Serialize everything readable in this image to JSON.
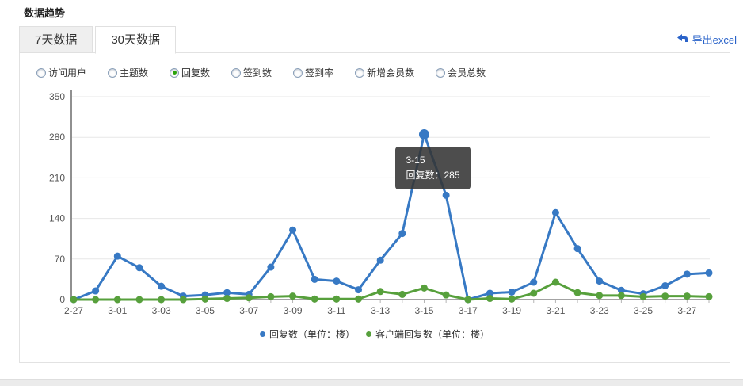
{
  "header": {
    "title": "数据趋势"
  },
  "tabs": [
    {
      "label": "7天数据",
      "active": false
    },
    {
      "label": "30天数据",
      "active": true
    }
  ],
  "export": {
    "label": "导出excel",
    "icon": "export-arrow-icon",
    "color": "#2a63c9"
  },
  "metrics": {
    "options": [
      {
        "label": "访问用户",
        "selected": false
      },
      {
        "label": "主题数",
        "selected": false
      },
      {
        "label": "回复数",
        "selected": true
      },
      {
        "label": "签到数",
        "selected": false
      },
      {
        "label": "签到率",
        "selected": false
      },
      {
        "label": "新增会员数",
        "selected": false
      },
      {
        "label": "会员总数",
        "selected": false
      }
    ]
  },
  "chart_data": {
    "type": "line",
    "x": [
      "2-27",
      "2-28",
      "3-01",
      "3-02",
      "3-03",
      "3-04",
      "3-05",
      "3-06",
      "3-07",
      "3-08",
      "3-09",
      "3-10",
      "3-11",
      "3-12",
      "3-13",
      "3-14",
      "3-15",
      "3-16",
      "3-17",
      "3-18",
      "3-19",
      "3-20",
      "3-21",
      "3-22",
      "3-23",
      "3-24",
      "3-25",
      "3-26",
      "3-27",
      "3-28"
    ],
    "x_label_every": 2,
    "series": [
      {
        "name": "回复数（单位：楼）",
        "color": "#3779c4",
        "values": [
          0,
          15,
          75,
          55,
          23,
          6,
          8,
          12,
          9,
          56,
          120,
          35,
          32,
          17,
          68,
          114,
          285,
          180,
          0,
          11,
          13,
          30,
          150,
          88,
          32,
          16,
          10,
          24,
          44,
          46
        ]
      },
      {
        "name": "客户端回复数（单位：楼）",
        "color": "#57a03c",
        "values": [
          0,
          0,
          0,
          0,
          0,
          0,
          1,
          2,
          3,
          5,
          6,
          1,
          1,
          1,
          14,
          9,
          20,
          8,
          0,
          2,
          1,
          11,
          30,
          12,
          7,
          7,
          5,
          6,
          6,
          5
        ]
      }
    ],
    "ylim": [
      0,
      350
    ],
    "yticks": [
      0,
      70,
      140,
      210,
      280,
      350
    ],
    "grid": true,
    "legend_position": "bottom"
  },
  "tooltip": {
    "label": "3-15",
    "value_text": "回复数：285",
    "point_index": 16,
    "series_index": 0
  },
  "colors": {
    "grid": "#e7e7e7",
    "y_axis": "#909090",
    "x_axis": "#a3a3a3",
    "tick": "#b5b5b5",
    "link": "#2a63c9"
  }
}
